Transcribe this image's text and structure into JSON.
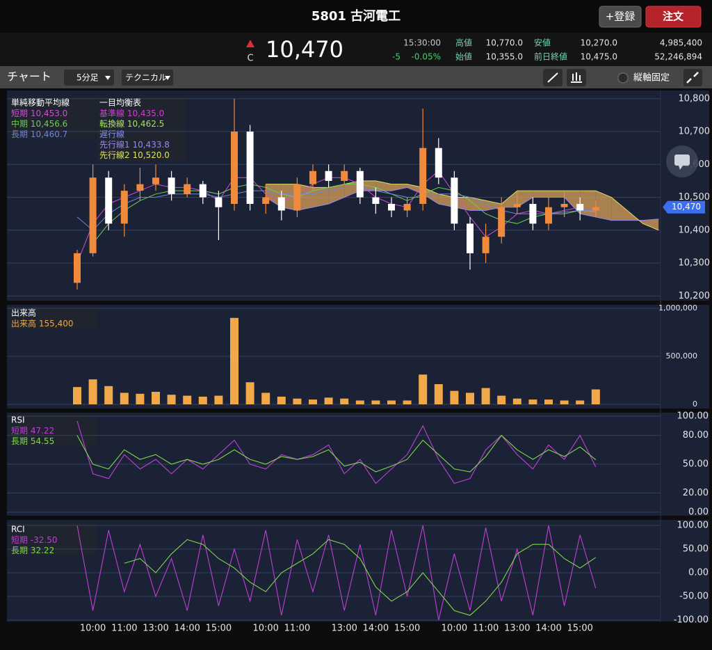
{
  "header": {
    "title": "5801 古河電工",
    "watch_button": "+登録",
    "order_button": "注文"
  },
  "quote": {
    "market_mark": "C",
    "price": "10,470",
    "time": "15:30:00",
    "change": "-5",
    "change_percent": "-0.05%",
    "high_label": "高値",
    "high": "10,770.0",
    "low_label": "安値",
    "low": "10,270.0",
    "volume": "4,985,400",
    "open_label": "始値",
    "open": "10,355.0",
    "prev_close_label": "前日終値",
    "prev_close": "10,475.0",
    "turnover": "52,246,894"
  },
  "toolbar": {
    "title": "チャート",
    "interval": "5分足",
    "indicator": "テクニカル",
    "axis_lock": "縦軸固定"
  },
  "chart_data": [
    {
      "type": "candlestick",
      "grid": true,
      "up_color": "#f08a3c",
      "down_color": "#ffffff",
      "last_price_label": "10,470",
      "categories": [
        null,
        "10:00",
        null,
        "11:00",
        null,
        "13:00",
        null,
        "14:00",
        null,
        "15:00",
        null,
        null,
        "10:00",
        null,
        "11:00",
        null,
        null,
        "13:00",
        null,
        "14:00",
        null,
        "15:00",
        null,
        null,
        "10:00",
        null,
        "11:00",
        null,
        "13:00",
        null,
        "14:00",
        null,
        "15:00",
        null,
        null,
        null,
        null,
        null
      ],
      "open": [
        10240,
        10330,
        10560,
        10420,
        10520,
        10540,
        10560,
        10510,
        10540,
        10500,
        10480,
        10700,
        10480,
        10500,
        10460,
        10540,
        10580,
        10550,
        10580,
        10500,
        10480,
        10460,
        10480,
        10650,
        10560,
        10420,
        10330,
        10380,
        10470,
        10480,
        10420,
        10470,
        10480,
        10460,
        null,
        null,
        null,
        null
      ],
      "high": [
        10340,
        10600,
        10580,
        10540,
        10590,
        10600,
        10580,
        10560,
        10550,
        10520,
        10800,
        10720,
        10540,
        10520,
        10560,
        10600,
        10600,
        10600,
        10590,
        10530,
        10500,
        10500,
        10770,
        10680,
        10580,
        10440,
        10420,
        10500,
        10520,
        10500,
        10500,
        10520,
        10500,
        10490,
        null,
        null,
        null,
        null
      ],
      "low": [
        10220,
        10320,
        10400,
        10380,
        10490,
        10520,
        10490,
        10500,
        10480,
        10370,
        10460,
        10460,
        10450,
        10430,
        10440,
        10520,
        10530,
        10540,
        10480,
        10450,
        10440,
        10440,
        10460,
        10540,
        10400,
        10280,
        10300,
        10360,
        10450,
        10400,
        10400,
        10440,
        10430,
        10440,
        null,
        null,
        null,
        null
      ],
      "close": [
        10330,
        10560,
        10420,
        10520,
        10540,
        10560,
        10510,
        10540,
        10500,
        10470,
        10700,
        10480,
        10500,
        10460,
        10540,
        10580,
        10550,
        10580,
        10500,
        10480,
        10460,
        10480,
        10650,
        10560,
        10420,
        10330,
        10380,
        10470,
        10480,
        10420,
        10470,
        10480,
        10460,
        10470,
        null,
        null,
        null,
        null
      ],
      "ylim": [
        10190,
        10825
      ],
      "yticks": [
        {
          "value": 10200,
          "label": "10,200"
        },
        {
          "value": 10300,
          "label": "10,300"
        },
        {
          "value": 10400,
          "label": "10,400"
        },
        {
          "value": 10500,
          "label": "10,500"
        },
        {
          "value": 10600,
          "label": "10,600"
        },
        {
          "value": 10700,
          "label": "10,700"
        },
        {
          "value": 10800,
          "label": "10,800"
        }
      ],
      "sma": {
        "title": "単純移動平均線",
        "series": [
          {
            "name": "短期",
            "color": "#d24cd8",
            "legend_value": "10,453.0",
            "values": [
              10300,
              10420,
              10480,
              10500,
              10520,
              10540,
              10530,
              10530,
              10520,
              10490,
              10560,
              10560,
              10510,
              10490,
              10500,
              10540,
              10560,
              10560,
              10540,
              10500,
              10480,
              10470,
              10540,
              10580,
              10510,
              10440,
              10380,
              10410,
              10450,
              10460,
              10450,
              10460,
              10470,
              10453,
              null,
              null,
              null,
              null
            ]
          },
          {
            "name": "中期",
            "color": "#6cd050",
            "legend_value": "10,456.6",
            "values": [
              null,
              10360,
              10420,
              10460,
              10490,
              10510,
              10520,
              10520,
              10520,
              10510,
              10530,
              10540,
              10530,
              10510,
              10500,
              10520,
              10530,
              10540,
              10540,
              10530,
              10510,
              10490,
              10510,
              10530,
              10520,
              10490,
              10450,
              10430,
              10420,
              10440,
              10450,
              10450,
              10460,
              10456.6,
              null,
              null,
              null,
              null
            ]
          },
          {
            "name": "長期",
            "color": "#6d86d8",
            "legend_value": "10,460.7",
            "values": [
              10440,
              10400,
              10450,
              10480,
              10500,
              10500,
              10510,
              10510,
              10510,
              10500,
              10510,
              10520,
              10520,
              10510,
              10510,
              10510,
              10520,
              10530,
              10530,
              10520,
              10510,
              10500,
              10500,
              10510,
              10510,
              10500,
              10480,
              10460,
              10450,
              10450,
              10450,
              10455,
              10460,
              10460.7,
              null,
              null,
              null,
              null
            ]
          }
        ]
      },
      "ichimoku": {
        "title": "一目均衡表",
        "cloud_color": "#d9a05a",
        "lines": [
          {
            "name": "基準線",
            "color": "#d040d0",
            "legend_value": "10,435.0"
          },
          {
            "name": "転換線",
            "color": "#a6e35a",
            "legend_value": "10,462.5"
          },
          {
            "name": "遅行線",
            "color": "#7f8cf5"
          },
          {
            "name": "先行線1",
            "color": "#9a86f0",
            "legend_value": "10,433.8",
            "values": [
              null,
              null,
              null,
              null,
              null,
              null,
              null,
              null,
              null,
              null,
              null,
              null,
              10500,
              10470,
              10460,
              10470,
              10480,
              10500,
              10520,
              10520,
              10520,
              10530,
              10510,
              10480,
              10470,
              10460,
              10460,
              10470,
              10470,
              10500,
              10500,
              10500,
              10450,
              10440,
              10430,
              10430,
              10430,
              10434
            ]
          },
          {
            "name": "先行線2",
            "color": "#dfe060",
            "legend_value": "10,520.0",
            "values": [
              null,
              null,
              null,
              null,
              null,
              null,
              null,
              null,
              null,
              null,
              null,
              null,
              10540,
              10540,
              10540,
              10530,
              10530,
              10540,
              10550,
              10550,
              10540,
              10540,
              10530,
              10510,
              10500,
              10500,
              10490,
              10480,
              10520,
              10520,
              10520,
              10520,
              10520,
              10520,
              10500,
              10460,
              10420,
              10400
            ]
          }
        ]
      }
    },
    {
      "type": "bar",
      "title": "出来高",
      "grid": true,
      "series": [
        {
          "name": "出来高",
          "color": "#f0a848",
          "legend_value": "155,400",
          "values": [
            180000,
            260000,
            190000,
            120000,
            110000,
            130000,
            100000,
            90000,
            80000,
            90000,
            900000,
            230000,
            120000,
            80000,
            60000,
            50000,
            70000,
            60000,
            40000,
            40000,
            40000,
            40000,
            310000,
            210000,
            140000,
            120000,
            170000,
            90000,
            60000,
            50000,
            50000,
            40000,
            40000,
            155400,
            null,
            null,
            null,
            null
          ]
        }
      ],
      "ylim": [
        0,
        1000000
      ],
      "yticks": [
        0,
        {
          "value": 500000,
          "label": "500,000"
        },
        {
          "value": 1000000,
          "label": "1,000,000"
        }
      ]
    },
    {
      "type": "line",
      "title": "RSI",
      "grid": true,
      "series": [
        {
          "name": "短期",
          "color": "#c03fd6",
          "legend_value": "47.22",
          "values": [
            95,
            40,
            35,
            60,
            45,
            55,
            40,
            55,
            45,
            60,
            75,
            50,
            45,
            60,
            55,
            60,
            70,
            40,
            55,
            30,
            45,
            60,
            90,
            55,
            30,
            35,
            65,
            80,
            60,
            45,
            70,
            55,
            80,
            47.22,
            null,
            null,
            null,
            null
          ]
        },
        {
          "name": "長期",
          "color": "#7fd84a",
          "legend_value": "54.55",
          "values": [
            80,
            50,
            45,
            65,
            55,
            60,
            50,
            55,
            50,
            55,
            65,
            55,
            50,
            58,
            55,
            58,
            65,
            48,
            52,
            42,
            48,
            55,
            75,
            60,
            45,
            42,
            58,
            80,
            65,
            55,
            65,
            58,
            68,
            54.55,
            null,
            null,
            null,
            null
          ]
        }
      ],
      "ylim": [
        0,
        100
      ],
      "yticks": [
        {
          "value": 0,
          "label": "0.00"
        },
        {
          "value": 20,
          "label": "20.00"
        },
        {
          "value": 50,
          "label": "50.00"
        },
        {
          "value": 80,
          "label": "80.00"
        },
        {
          "value": 100,
          "label": "100.00"
        }
      ]
    },
    {
      "type": "line",
      "title": "RCI",
      "grid": true,
      "series": [
        {
          "name": "短期",
          "color": "#c03fd6",
          "legend_value": "-32.50",
          "values": [
            100,
            -80,
            90,
            -40,
            60,
            -50,
            30,
            -80,
            80,
            -70,
            50,
            -60,
            90,
            -90,
            70,
            -40,
            80,
            -80,
            60,
            -90,
            90,
            -50,
            100,
            -100,
            40,
            -80,
            95,
            -60,
            50,
            -90,
            100,
            -70,
            80,
            -32.5,
            null,
            null,
            null,
            null
          ]
        },
        {
          "name": "長期",
          "color": "#7fd84a",
          "legend_value": "32.22",
          "values": [
            null,
            null,
            null,
            20,
            30,
            0,
            40,
            70,
            60,
            30,
            10,
            -20,
            -40,
            0,
            20,
            40,
            70,
            60,
            30,
            -30,
            -60,
            -40,
            0,
            -40,
            -80,
            -90,
            -60,
            -20,
            40,
            60,
            60,
            30,
            10,
            32.22,
            null,
            null,
            null,
            null
          ]
        }
      ],
      "ylim": [
        -100,
        100
      ],
      "yticks": [
        {
          "value": -100,
          "label": "-100.00"
        },
        {
          "value": -50,
          "label": "-50.00"
        },
        {
          "value": 0,
          "label": "0.00"
        },
        {
          "value": 50,
          "label": "50.00"
        },
        {
          "value": 100,
          "label": "100.00"
        }
      ]
    }
  ]
}
